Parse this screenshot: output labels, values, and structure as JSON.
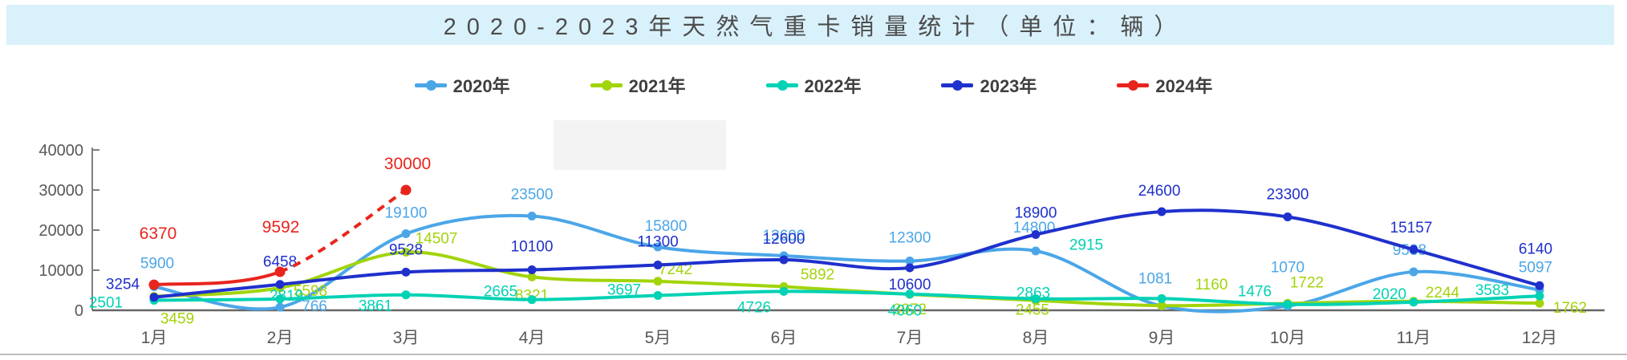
{
  "title": {
    "text": "2020-2023年天然气重卡销量统计（单位：辆）"
  },
  "colors": {
    "title_bar_bg": "#d9f1fb",
    "axis_text": "#595959",
    "axis_line": "#7f7f7f",
    "legend_text": "#3f3f3f",
    "watermark_patch": "#f3f3f3"
  },
  "legend": [
    "2020年",
    "2021年",
    "2022年",
    "2023年",
    "2024年"
  ],
  "chart_data": {
    "type": "line",
    "title": "2020-2023年天然气重卡销量统计（单位：辆）",
    "categories": [
      "1月",
      "2月",
      "3月",
      "4月",
      "5月",
      "6月",
      "7月",
      "8月",
      "9月",
      "10月",
      "11月",
      "12月"
    ],
    "y_ticks": [
      0,
      10000,
      20000,
      30000,
      40000
    ],
    "ylim": [
      0,
      40000
    ],
    "grid": false,
    "legend_position": "top",
    "smooth_lines": true,
    "series": [
      {
        "name": "2020年",
        "color": "#4ba6e8",
        "values": [
          5900,
          766,
          19100,
          23500,
          15800,
          13600,
          12300,
          14800,
          1081,
          1070,
          9588,
          5097
        ]
      },
      {
        "name": "2021年",
        "color": "#a2d40a",
        "values": [
          3459,
          5598,
          14507,
          8321,
          7242,
          5892,
          3972,
          2455,
          1160,
          1722,
          2244,
          1762
        ]
      },
      {
        "name": "2022年",
        "color": "#00d2b4",
        "values": [
          2501,
          2819,
          3861,
          2665,
          3697,
          4726,
          4060,
          2863,
          2915,
          1476,
          2020,
          3583
        ]
      },
      {
        "name": "2023年",
        "color": "#1f30cc",
        "values": [
          3254,
          6458,
          9528,
          10100,
          11300,
          12600,
          10600,
          18900,
          24600,
          23300,
          15157,
          6140
        ]
      },
      {
        "name": "2024年",
        "color": "#e8251d",
        "dashed_from_index": 1,
        "values": [
          6370,
          9592,
          30000
        ]
      }
    ]
  }
}
